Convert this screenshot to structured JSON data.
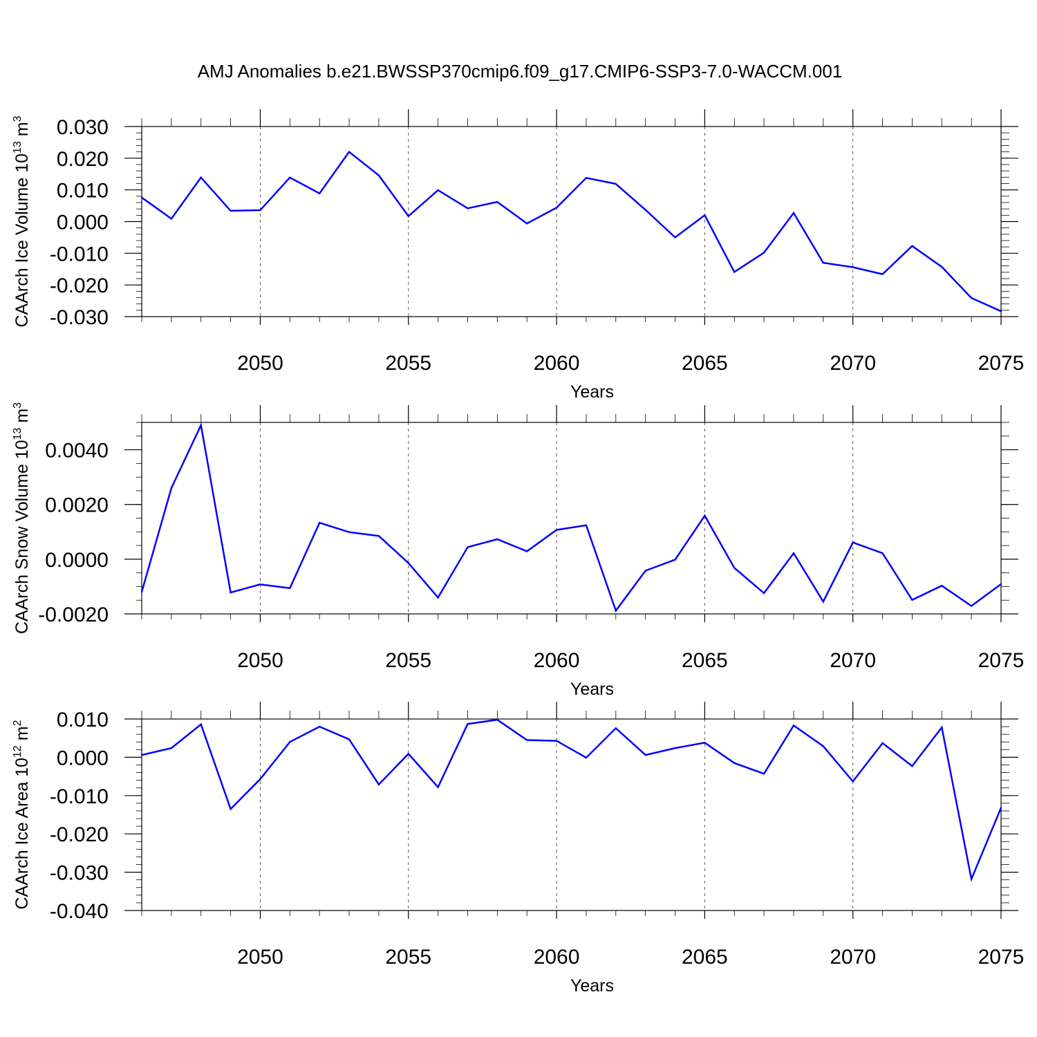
{
  "title": "AMJ Anomalies b.e21.BWSSP370cmip6.f09_g17.CMIP6-SSP3-7.0-WACCM.001",
  "colors": {
    "series": "#0000ff",
    "axes": "#000000",
    "grid": "#555555"
  },
  "chart_data": [
    {
      "type": "line",
      "ylabel_main": "CAArch Ice Volume 10",
      "ylabel_exp": "13",
      "ylabel_unit": "m",
      "ylabel_unit_exp": "3",
      "xlabel": "Years",
      "xlim": [
        2046,
        2075
      ],
      "ylim": [
        -0.03,
        0.03
      ],
      "yticks": [
        0.03,
        0.02,
        0.01,
        0.0,
        -0.01,
        -0.02,
        -0.03
      ],
      "ytick_labels": [
        "0.030",
        "0.020",
        "0.010",
        "0.000",
        "-0.010",
        "-0.020",
        "-0.030"
      ],
      "yminor_step": 0.002,
      "xticks": [
        2050,
        2055,
        2060,
        2065,
        2070,
        2075
      ],
      "xtick_labels": [
        "2050",
        "2055",
        "2060",
        "2065",
        "2070",
        "2075"
      ],
      "grid": "x-dashed",
      "x": [
        2046,
        2047,
        2048,
        2049,
        2050,
        2051,
        2052,
        2053,
        2054,
        2055,
        2056,
        2057,
        2058,
        2059,
        2060,
        2061,
        2062,
        2063,
        2064,
        2065,
        2066,
        2067,
        2068,
        2069,
        2070,
        2071,
        2072,
        2073,
        2074,
        2075
      ],
      "values": [
        0.0076,
        0.0009,
        0.0139,
        0.0034,
        0.0036,
        0.0139,
        0.0089,
        0.022,
        0.0146,
        0.0017,
        0.0099,
        0.0042,
        0.0062,
        -0.0006,
        0.0044,
        0.0138,
        0.0119,
        0.0037,
        -0.005,
        0.002,
        -0.0159,
        -0.0098,
        0.0027,
        -0.013,
        -0.0144,
        -0.0166,
        -0.0077,
        -0.0143,
        -0.0241,
        -0.0283
      ]
    },
    {
      "type": "line",
      "ylabel_main": "CAArch Snow Volume 10",
      "ylabel_exp": "13",
      "ylabel_unit": "m",
      "ylabel_unit_exp": "3",
      "xlabel": "Years",
      "xlim": [
        2046,
        2075
      ],
      "ylim": [
        -0.002,
        0.005
      ],
      "yticks": [
        0.004,
        0.002,
        0.0,
        -0.002
      ],
      "ytick_labels": [
        "0.0040",
        "0.0020",
        "0.0000",
        "-0.0020"
      ],
      "yminor_step": 0.0005,
      "xticks": [
        2050,
        2055,
        2060,
        2065,
        2070,
        2075
      ],
      "xtick_labels": [
        "2050",
        "2055",
        "2060",
        "2065",
        "2070",
        "2075"
      ],
      "grid": "x-dashed",
      "x": [
        2046,
        2047,
        2048,
        2049,
        2050,
        2051,
        2052,
        2053,
        2054,
        2055,
        2056,
        2057,
        2058,
        2059,
        2060,
        2061,
        2062,
        2063,
        2064,
        2065,
        2066,
        2067,
        2068,
        2069,
        2070,
        2071,
        2072,
        2073,
        2074,
        2075
      ],
      "values": [
        -0.0012,
        0.0026,
        0.0049,
        -0.00122,
        -0.00092,
        -0.00106,
        0.00133,
        0.00099,
        0.00085,
        -0.00014,
        -0.0014,
        0.00044,
        0.00073,
        0.00029,
        0.00107,
        0.00124,
        -0.00188,
        -0.00042,
        -2e-05,
        0.00159,
        -0.00032,
        -0.00124,
        0.00022,
        -0.00155,
        0.00061,
        0.00022,
        -0.00149,
        -0.00097,
        -0.00171,
        -0.00091
      ]
    },
    {
      "type": "line",
      "ylabel_main": "CAArch Ice Area 10",
      "ylabel_exp": "12",
      "ylabel_unit": "m",
      "ylabel_unit_exp": "2",
      "xlabel": "Years",
      "xlim": [
        2046,
        2075
      ],
      "ylim": [
        -0.04,
        0.01
      ],
      "yticks": [
        0.01,
        0.0,
        -0.01,
        -0.02,
        -0.03,
        -0.04
      ],
      "ytick_labels": [
        "0.010",
        "0.000",
        "-0.010",
        "-0.020",
        "-0.030",
        "-0.040"
      ],
      "yminor_step": 0.002,
      "xticks": [
        2050,
        2055,
        2060,
        2065,
        2070,
        2075
      ],
      "xtick_labels": [
        "2050",
        "2055",
        "2060",
        "2065",
        "2070",
        "2075"
      ],
      "grid": "x-dashed",
      "x": [
        2046,
        2047,
        2048,
        2049,
        2050,
        2051,
        2052,
        2053,
        2054,
        2055,
        2056,
        2057,
        2058,
        2059,
        2060,
        2061,
        2062,
        2063,
        2064,
        2065,
        2066,
        2067,
        2068,
        2069,
        2070,
        2071,
        2072,
        2073,
        2074,
        2075
      ],
      "values": [
        0.0006,
        0.0024,
        0.0086,
        -0.0135,
        -0.0057,
        0.004,
        0.008,
        0.0047,
        -0.0071,
        0.0009,
        -0.0078,
        0.0087,
        0.0098,
        0.0045,
        0.0043,
        -0.0001,
        0.0076,
        0.0006,
        0.0024,
        0.0038,
        -0.0015,
        -0.0043,
        0.0083,
        0.0029,
        -0.0063,
        0.0037,
        -0.0023,
        0.0078,
        -0.0318,
        -0.0132
      ]
    }
  ]
}
